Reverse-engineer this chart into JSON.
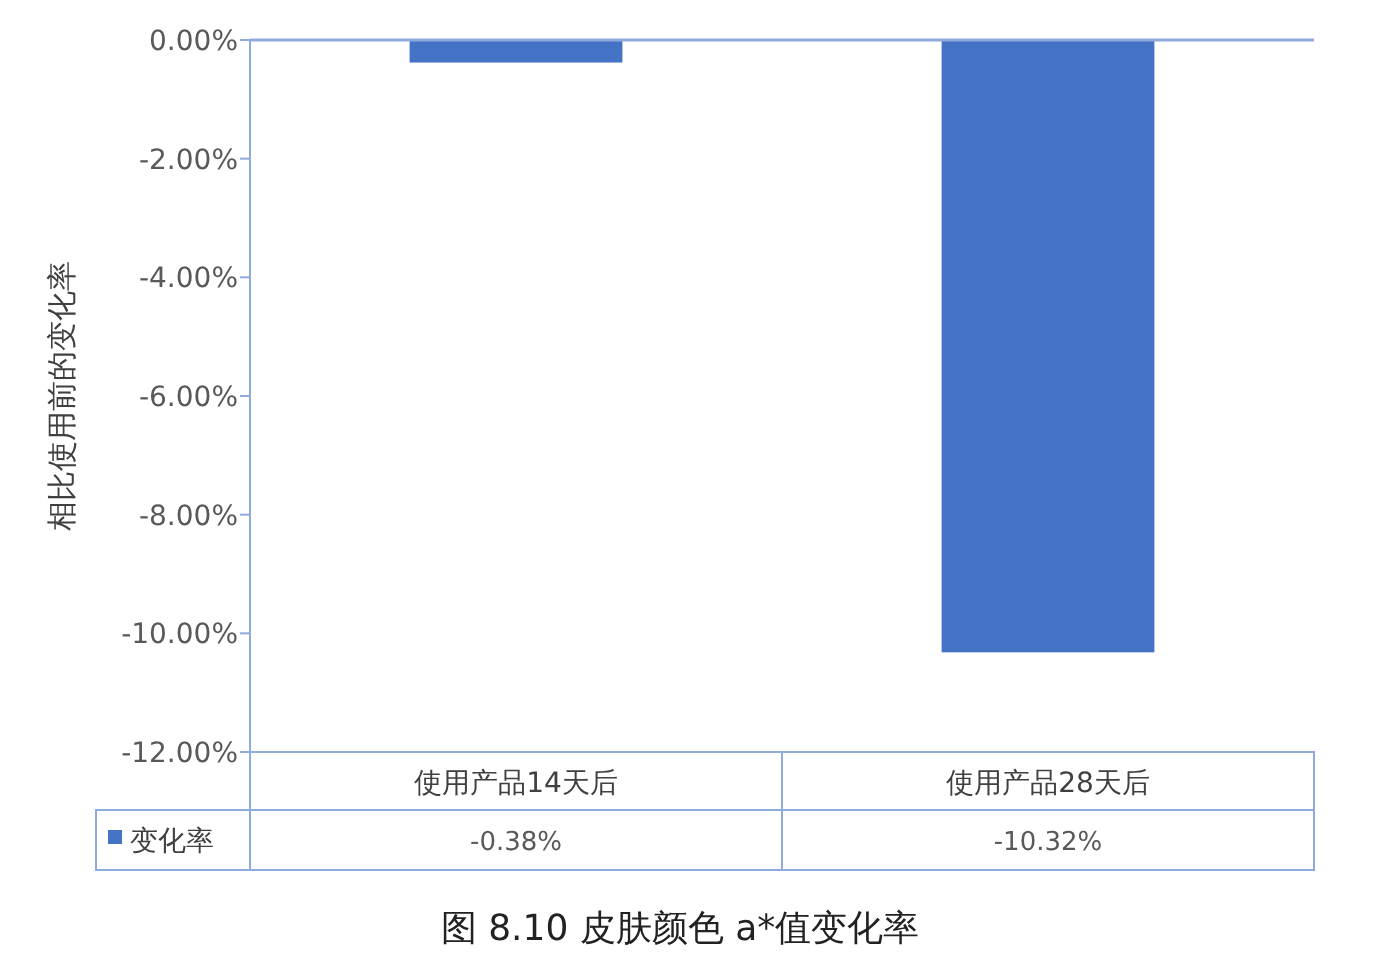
{
  "chart_data": {
    "type": "bar",
    "title": "图 8.10 皮肤颜色 a*值变化率",
    "ylabel": "相比使用前的变化率",
    "categories": [
      "使用产品14天后",
      "使用产品28天后"
    ],
    "series": [
      {
        "name": "变化率",
        "color": "#4472c4",
        "values": [
          -0.38,
          -10.32
        ],
        "value_labels": [
          "-0.38%",
          "-10.32%"
        ]
      }
    ],
    "ylim": [
      -12,
      0
    ],
    "yticks": [
      {
        "value": 0,
        "label": "0.00%"
      },
      {
        "value": -2,
        "label": "-2.00%"
      },
      {
        "value": -4,
        "label": "-4.00%"
      },
      {
        "value": -6,
        "label": "-6.00%"
      },
      {
        "value": -8,
        "label": "-8.00%"
      },
      {
        "value": -10,
        "label": "-10.00%"
      },
      {
        "value": -12,
        "label": "-12.00%"
      }
    ],
    "grid": false
  }
}
